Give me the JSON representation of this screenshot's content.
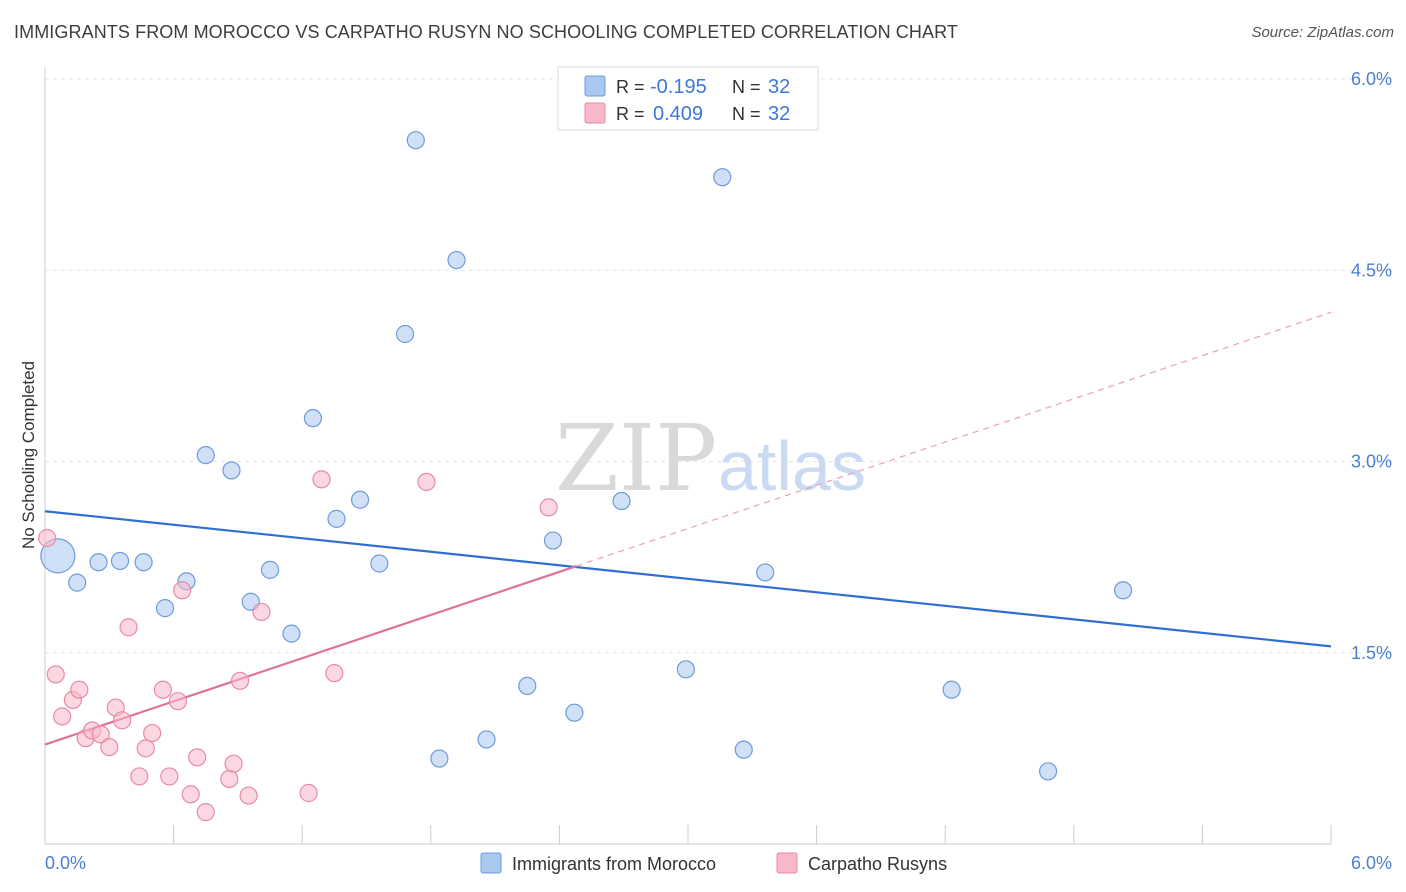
{
  "header": {
    "title": "IMMIGRANTS FROM MOROCCO VS CARPATHO RUSYN NO SCHOOLING COMPLETED CORRELATION CHART",
    "source": "Source: ZipAtlas.com"
  },
  "watermark": {
    "zip": "ZIP",
    "atlas": "atlas"
  },
  "legend_top": {
    "rows": [
      {
        "r_label": "R = ",
        "r_value": "-0.195",
        "n_label": "N = ",
        "n_value": "32",
        "color": "#a9c8f0"
      },
      {
        "r_label": "R = ",
        "r_value": "0.409",
        "n_label": "N = ",
        "n_value": "32",
        "color": "#f7b8c9"
      }
    ]
  },
  "legend_bottom": {
    "items": [
      {
        "label": "Immigrants from Morocco",
        "color": "#a9c8f0"
      },
      {
        "label": "Carpatho Rusyns",
        "color": "#f7b8c9"
      }
    ]
  },
  "chart_data": {
    "type": "scatter",
    "title": "IMMIGRANTS FROM MOROCCO VS CARPATHO RUSYN NO SCHOOLING COMPLETED CORRELATION CHART",
    "xlabel": "",
    "ylabel": "No Schooling Completed",
    "xlim": [
      0,
      6.0
    ],
    "ylim": [
      0,
      6.0
    ],
    "x_tick_labels": [
      "0.0%",
      "6.0%"
    ],
    "y_tick_labels": [
      {
        "value": 1.5,
        "label": "1.5%"
      },
      {
        "value": 3.0,
        "label": "3.0%"
      },
      {
        "value": 4.5,
        "label": "4.5%"
      },
      {
        "value": 6.0,
        "label": "6.0%"
      }
    ],
    "grid": true,
    "legend": "top-center",
    "series": [
      {
        "name": "Immigrants from Morocco",
        "color": "#a9c8f0",
        "edge": "#6d9bd9",
        "points": [
          {
            "x": 0.06,
            "y": 2.26,
            "big": true
          },
          {
            "x": 0.15,
            "y": 2.05
          },
          {
            "x": 0.25,
            "y": 2.21
          },
          {
            "x": 0.35,
            "y": 2.22
          },
          {
            "x": 0.46,
            "y": 2.21
          },
          {
            "x": 0.56,
            "y": 1.85
          },
          {
            "x": 0.66,
            "y": 2.06
          },
          {
            "x": 0.75,
            "y": 3.05
          },
          {
            "x": 0.87,
            "y": 2.93
          },
          {
            "x": 0.96,
            "y": 1.9
          },
          {
            "x": 1.05,
            "y": 2.15
          },
          {
            "x": 1.15,
            "y": 1.65
          },
          {
            "x": 1.25,
            "y": 3.34
          },
          {
            "x": 1.36,
            "y": 2.55
          },
          {
            "x": 1.47,
            "y": 2.7
          },
          {
            "x": 1.56,
            "y": 2.2
          },
          {
            "x": 1.68,
            "y": 4.0
          },
          {
            "x": 1.73,
            "y": 5.52
          },
          {
            "x": 1.84,
            "y": 0.67
          },
          {
            "x": 1.92,
            "y": 4.58
          },
          {
            "x": 2.06,
            "y": 0.82
          },
          {
            "x": 2.25,
            "y": 1.24
          },
          {
            "x": 2.37,
            "y": 2.38
          },
          {
            "x": 2.47,
            "y": 1.03
          },
          {
            "x": 2.69,
            "y": 2.69
          },
          {
            "x": 2.99,
            "y": 1.37
          },
          {
            "x": 3.26,
            "y": 0.74
          },
          {
            "x": 3.16,
            "y": 5.23
          },
          {
            "x": 3.36,
            "y": 2.13
          },
          {
            "x": 4.23,
            "y": 1.21
          },
          {
            "x": 4.68,
            "y": 0.57
          },
          {
            "x": 5.03,
            "y": 1.99
          }
        ],
        "trend": {
          "x0": 0.0,
          "y0": 2.61,
          "x1": 6.0,
          "y1": 1.55
        }
      },
      {
        "name": "Carpatho Rusyns",
        "color": "#f7b8c9",
        "edge": "#e88aa6",
        "points": [
          {
            "x": 0.01,
            "y": 2.4
          },
          {
            "x": 0.05,
            "y": 1.33
          },
          {
            "x": 0.08,
            "y": 1.0
          },
          {
            "x": 0.13,
            "y": 1.13
          },
          {
            "x": 0.16,
            "y": 1.21
          },
          {
            "x": 0.19,
            "y": 0.83
          },
          {
            "x": 0.22,
            "y": 0.89
          },
          {
            "x": 0.26,
            "y": 0.86
          },
          {
            "x": 0.3,
            "y": 0.76
          },
          {
            "x": 0.33,
            "y": 1.07
          },
          {
            "x": 0.36,
            "y": 0.97
          },
          {
            "x": 0.39,
            "y": 1.7
          },
          {
            "x": 0.44,
            "y": 0.53
          },
          {
            "x": 0.47,
            "y": 0.75
          },
          {
            "x": 0.5,
            "y": 0.87
          },
          {
            "x": 0.55,
            "y": 1.21
          },
          {
            "x": 0.58,
            "y": 0.53
          },
          {
            "x": 0.62,
            "y": 1.12
          },
          {
            "x": 0.64,
            "y": 1.99
          },
          {
            "x": 0.68,
            "y": 0.39
          },
          {
            "x": 0.71,
            "y": 0.68
          },
          {
            "x": 0.75,
            "y": 0.25
          },
          {
            "x": 0.86,
            "y": 0.51
          },
          {
            "x": 0.88,
            "y": 0.63
          },
          {
            "x": 0.91,
            "y": 1.28
          },
          {
            "x": 0.95,
            "y": 0.38
          },
          {
            "x": 1.01,
            "y": 1.82
          },
          {
            "x": 1.23,
            "y": 0.4
          },
          {
            "x": 1.29,
            "y": 2.86
          },
          {
            "x": 1.35,
            "y": 1.34
          },
          {
            "x": 1.78,
            "y": 2.84
          },
          {
            "x": 2.35,
            "y": 2.64
          }
        ],
        "trend": {
          "x0": 0.0,
          "y0": 0.78,
          "x1": 2.48,
          "y1": 2.18
        },
        "trend_dashed": {
          "x0": 2.48,
          "y0": 2.18,
          "x1": 6.0,
          "y1": 4.17
        }
      }
    ]
  }
}
